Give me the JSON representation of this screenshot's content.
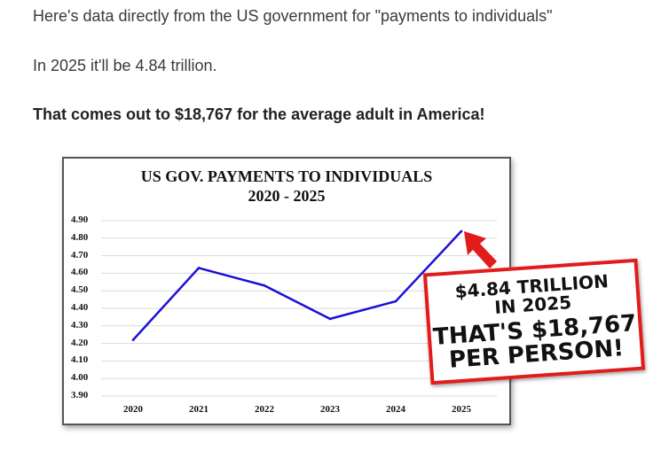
{
  "article": {
    "paragraph1": "Here's data directly from the US government for \"payments to individuals\"",
    "paragraph2": "In 2025 it'll be 4.84 trillion.",
    "paragraph3": "That comes out to $18,767 for the average adult in America!"
  },
  "callout": {
    "line1": "$4.84 TRILLION",
    "line2": "IN 2025",
    "line3": "THAT'S $18,767",
    "line4": "PER PERSON!",
    "border_color": "#e21b1b",
    "arrow_color": "#e21b1b"
  },
  "chart_data": {
    "type": "line",
    "title": "US GOV. PAYMENTS TO INDIVIDUALS",
    "subtitle": "2020 - 2025",
    "xlabel": "",
    "ylabel": "",
    "categories": [
      "2020",
      "2021",
      "2022",
      "2023",
      "2024",
      "2025"
    ],
    "series": [
      {
        "values": [
          4.22,
          4.63,
          4.53,
          4.34,
          4.44,
          4.84
        ],
        "color": "#1a0fd6"
      }
    ],
    "yticks": [
      "4.90",
      "4.80",
      "4.70",
      "4.60",
      "4.50",
      "4.40",
      "4.30",
      "4.20",
      "4.10",
      "4.00",
      "3.90"
    ],
    "ylim": [
      3.9,
      4.9
    ],
    "grid": true,
    "legend": "none"
  }
}
